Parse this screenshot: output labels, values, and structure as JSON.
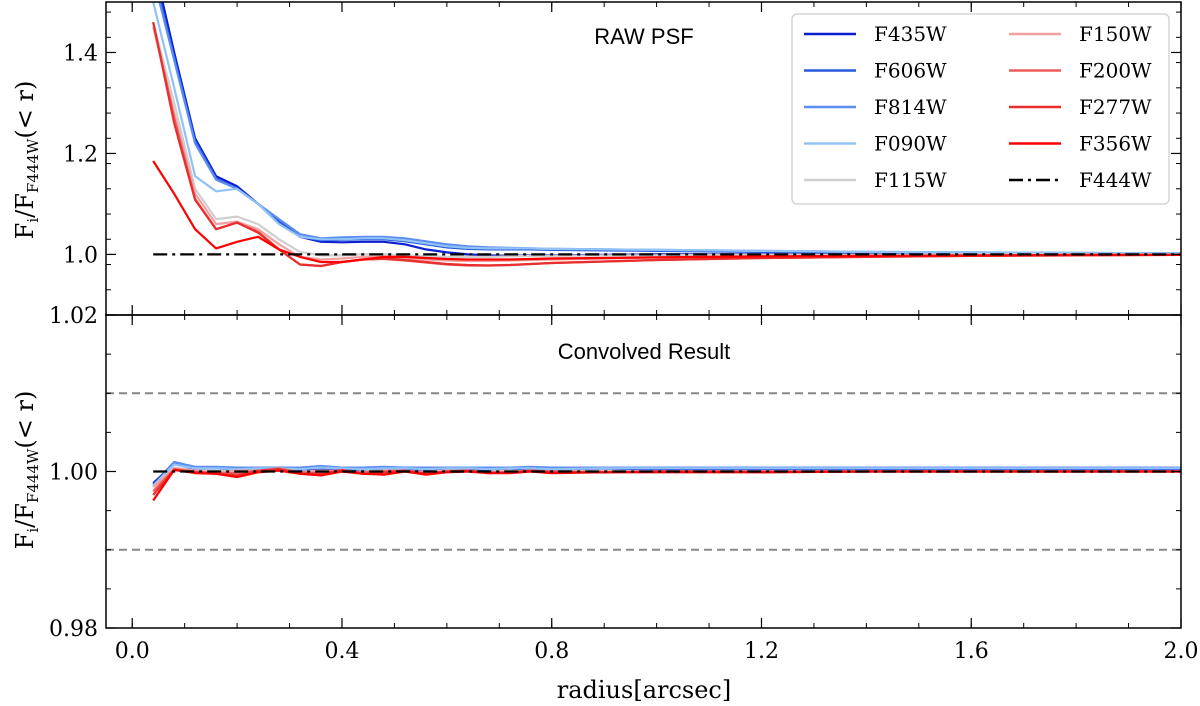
{
  "chart_data": [
    {
      "type": "line",
      "title": "RAW PSF",
      "ylabel": "F_i/F_F444W(< r)",
      "xlabel": "",
      "xlim": [
        -0.05,
        2.0
      ],
      "ylim": [
        0.88,
        1.5
      ],
      "yticks": [
        {
          "v": 1.0,
          "label": "1.0"
        },
        {
          "v": 1.2,
          "label": "1.2"
        },
        {
          "v": 1.4,
          "label": "1.4"
        }
      ],
      "grid": false,
      "legend_placement": "top-right",
      "x": [
        0.04,
        0.08,
        0.12,
        0.16,
        0.2,
        0.24,
        0.28,
        0.32,
        0.36,
        0.4,
        0.44,
        0.48,
        0.52,
        0.56,
        0.6,
        0.64,
        0.68,
        0.72,
        0.76,
        0.8,
        0.9,
        1.0,
        1.1,
        1.2,
        1.4,
        1.6,
        1.8,
        2.0
      ],
      "series": [
        {
          "name": "F435W",
          "color": "#0b1fd1",
          "values": [
            1.58,
            1.4,
            1.23,
            1.155,
            1.135,
            1.1,
            1.065,
            1.035,
            1.025,
            1.024,
            1.025,
            1.025,
            1.02,
            1.01,
            1.004,
            1.0,
            0.998,
            0.997,
            0.998,
            0.998,
            0.999,
            1.0,
            1.0,
            1.0,
            1.0,
            1.0,
            1.0,
            1.0
          ]
        },
        {
          "name": "F606W",
          "color": "#2659dd",
          "values": [
            1.56,
            1.39,
            1.225,
            1.15,
            1.13,
            1.1,
            1.065,
            1.035,
            1.028,
            1.029,
            1.03,
            1.03,
            1.026,
            1.02,
            1.014,
            1.011,
            1.01,
            1.01,
            1.01,
            1.009,
            1.008,
            1.007,
            1.006,
            1.005,
            1.004,
            1.003,
            1.002,
            1.002
          ]
        },
        {
          "name": "F814W",
          "color": "#5b8ef0",
          "values": [
            1.55,
            1.385,
            1.22,
            1.148,
            1.13,
            1.1,
            1.07,
            1.04,
            1.032,
            1.034,
            1.035,
            1.035,
            1.032,
            1.026,
            1.02,
            1.016,
            1.014,
            1.013,
            1.012,
            1.011,
            1.01,
            1.009,
            1.008,
            1.007,
            1.005,
            1.004,
            1.003,
            1.002
          ]
        },
        {
          "name": "F090W",
          "color": "#92c2f5",
          "values": [
            1.5,
            1.33,
            1.155,
            1.125,
            1.13,
            1.1,
            1.06,
            1.035,
            1.03,
            1.03,
            1.032,
            1.032,
            1.028,
            1.022,
            1.016,
            1.013,
            1.012,
            1.012,
            1.012,
            1.011,
            1.01,
            1.009,
            1.008,
            1.007,
            1.005,
            1.004,
            1.003,
            1.002
          ]
        },
        {
          "name": "F115W",
          "color": "#cfcfcf",
          "values": [
            1.46,
            1.3,
            1.13,
            1.07,
            1.075,
            1.06,
            1.03,
            1.005,
            0.998,
            0.998,
            1.0,
            1.0,
            0.998,
            0.996,
            0.995,
            0.995,
            0.995,
            0.996,
            0.997,
            0.997,
            0.998,
            0.998,
            0.999,
            0.999,
            0.999,
            1.0,
            1.0,
            1.0
          ]
        },
        {
          "name": "F150W",
          "color": "#f4a0a0",
          "values": [
            1.45,
            1.28,
            1.12,
            1.06,
            1.065,
            1.05,
            1.02,
            0.995,
            0.99,
            0.992,
            0.995,
            0.995,
            0.993,
            0.99,
            0.988,
            0.987,
            0.987,
            0.988,
            0.989,
            0.99,
            0.992,
            0.994,
            0.995,
            0.996,
            0.997,
            0.998,
            0.999,
            0.999
          ]
        },
        {
          "name": "F200W",
          "color": "#ee5c5c",
          "values": [
            1.46,
            1.27,
            1.11,
            1.05,
            1.063,
            1.045,
            1.01,
            0.98,
            0.977,
            0.985,
            0.99,
            0.991,
            0.988,
            0.984,
            0.98,
            0.978,
            0.978,
            0.979,
            0.981,
            0.983,
            0.986,
            0.989,
            0.991,
            0.993,
            0.995,
            0.997,
            0.998,
            0.999
          ]
        },
        {
          "name": "F277W",
          "color": "#e92e2e",
          "values": [
            1.46,
            1.26,
            1.108,
            1.05,
            1.063,
            1.043,
            1.01,
            0.98,
            0.977,
            0.985,
            0.99,
            0.992,
            0.989,
            0.985,
            0.981,
            0.979,
            0.978,
            0.979,
            0.981,
            0.983,
            0.986,
            0.989,
            0.991,
            0.993,
            0.995,
            0.997,
            0.998,
            0.999
          ]
        },
        {
          "name": "F356W",
          "color": "#ff0000",
          "values": [
            1.185,
            1.12,
            1.05,
            1.012,
            1.025,
            1.035,
            1.01,
            0.995,
            0.985,
            0.985,
            0.99,
            0.995,
            0.995,
            0.993,
            0.991,
            0.99,
            0.99,
            0.99,
            0.991,
            0.992,
            0.993,
            0.994,
            0.995,
            0.996,
            0.997,
            0.998,
            0.999,
            0.999
          ]
        },
        {
          "name": "F444W",
          "color": "#000000",
          "dash": "14 5 3 5",
          "values": [
            1.0,
            1.0,
            1.0,
            1.0,
            1.0,
            1.0,
            1.0,
            1.0,
            1.0,
            1.0,
            1.0,
            1.0,
            1.0,
            1.0,
            1.0,
            1.0,
            1.0,
            1.0,
            1.0,
            1.0,
            1.0,
            1.0,
            1.0,
            1.0,
            1.0,
            1.0,
            1.0,
            1.0
          ]
        }
      ]
    },
    {
      "type": "line",
      "title": "Convolved Result",
      "ylabel": "F_i/F_F444W(< r)",
      "xlabel": "radius[arcsec]",
      "xlim": [
        -0.05,
        2.0
      ],
      "ylim": [
        0.98,
        1.02
      ],
      "xticks": [
        {
          "v": 0.0,
          "label": "0.0"
        },
        {
          "v": 0.4,
          "label": "0.4"
        },
        {
          "v": 0.8,
          "label": "0.8"
        },
        {
          "v": 1.2,
          "label": "1.2"
        },
        {
          "v": 1.6,
          "label": "1.6"
        },
        {
          "v": 2.0,
          "label": "2.0"
        }
      ],
      "yticks": [
        {
          "v": 0.98,
          "label": "0.98"
        },
        {
          "v": 1.0,
          "label": "1.00"
        },
        {
          "v": 1.02,
          "label": "1.02"
        }
      ],
      "reference_lines": [
        0.99,
        1.01
      ],
      "grid": false,
      "x": [
        0.04,
        0.08,
        0.12,
        0.16,
        0.2,
        0.24,
        0.28,
        0.32,
        0.36,
        0.4,
        0.44,
        0.48,
        0.52,
        0.56,
        0.6,
        0.64,
        0.68,
        0.72,
        0.76,
        0.8,
        0.9,
        1.0,
        1.1,
        1.2,
        1.4,
        1.6,
        1.8,
        2.0
      ],
      "series": [
        {
          "name": "F435W",
          "color": "#0b1fd1",
          "values": [
            0.9985,
            1.001,
            1.0003,
            1.0004,
            1.0002,
            1.0003,
            1.0003,
            1.0002,
            1.0004,
            1.0003,
            1.0002,
            1.0003,
            1.0003,
            1.0002,
            1.0003,
            1.0003,
            1.0002,
            1.0003,
            1.0003,
            1.0002,
            1.0003,
            1.0003,
            1.0003,
            1.0003,
            1.0003,
            1.0003,
            1.0003,
            1.0003
          ]
        },
        {
          "name": "F606W",
          "color": "#2659dd",
          "values": [
            0.9983,
            1.0012,
            1.0005,
            1.0005,
            1.0004,
            1.0004,
            1.0004,
            1.0004,
            1.0006,
            1.0004,
            1.0004,
            1.0005,
            1.0004,
            1.0004,
            1.0004,
            1.0004,
            1.0004,
            1.0004,
            1.0005,
            1.0004,
            1.0004,
            1.0004,
            1.0004,
            1.0004,
            1.0004,
            1.0004,
            1.0004,
            1.0004
          ]
        },
        {
          "name": "F814W",
          "color": "#5b8ef0",
          "values": [
            0.998,
            1.0012,
            1.0006,
            1.0006,
            1.0005,
            1.0005,
            1.0005,
            1.0005,
            1.0007,
            1.0005,
            1.0005,
            1.0006,
            1.0005,
            1.0005,
            1.0005,
            1.0005,
            1.0005,
            1.0005,
            1.0006,
            1.0005,
            1.0005,
            1.0005,
            1.0005,
            1.0005,
            1.0005,
            1.0005,
            1.0005,
            1.0005
          ]
        },
        {
          "name": "F090W",
          "color": "#92c2f5",
          "values": [
            0.9982,
            1.0009,
            1.0004,
            1.0004,
            1.0003,
            1.0004,
            1.0004,
            1.0003,
            1.0005,
            1.0004,
            1.0003,
            1.0004,
            1.0004,
            1.0003,
            1.0004,
            1.0004,
            1.0003,
            1.0004,
            1.0004,
            1.0003,
            1.0004,
            1.0004,
            1.0004,
            1.0004,
            1.0004,
            1.0004,
            1.0004,
            1.0004
          ]
        },
        {
          "name": "F115W",
          "color": "#cfcfcf",
          "values": [
            0.998,
            1.0005,
            1.0001,
            1.0001,
            1.0,
            1.0001,
            1.0001,
            1.0,
            1.0001,
            1.0,
            1.0,
            1.0001,
            1.0,
            1.0,
            1.0001,
            1.0,
            1.0,
            1.0001,
            1.0,
            1.0,
            1.0001,
            1.0,
            1.0,
            1.0,
            1.0,
            1.0,
            1.0,
            1.0
          ]
        },
        {
          "name": "F150W",
          "color": "#f4a0a0",
          "values": [
            0.998,
            1.0004,
            1.0001,
            0.9999,
            1.0001,
            1.0001,
            1.0003,
            0.9999,
            1.0001,
            1.0001,
            0.9999,
            1.0001,
            1.0001,
            0.9999,
            1.0001,
            1.0001,
            0.9999,
            1.0,
            1.0001,
            1.0,
            1.0,
            1.0,
            1.0,
            1.0,
            1.0,
            1.0,
            1.0,
            1.0
          ]
        },
        {
          "name": "F200W",
          "color": "#ee5c5c",
          "values": [
            0.9975,
            1.0003,
            1.0,
            0.9998,
            0.9998,
            1.0001,
            1.0004,
            0.9999,
            0.9998,
            1.0001,
            0.9999,
            1.0,
            1.0001,
            0.9998,
            1.0,
            1.0001,
            0.9999,
            0.9999,
            1.0001,
            1.0,
            0.9999,
            1.0,
            1.0,
            1.0,
            1.0,
            1.0,
            1.0,
            1.0
          ]
        },
        {
          "name": "F277W",
          "color": "#e92e2e",
          "values": [
            0.997,
            1.0002,
            0.9999,
            0.9997,
            0.9995,
            1.0001,
            1.0003,
            0.9997,
            0.9997,
            1.0002,
            0.9997,
            0.9999,
            1.0001,
            0.9997,
            1.0,
            1.0001,
            0.9998,
            0.9999,
            1.0001,
            0.9999,
            0.9999,
            1.0,
            1.0,
            0.9999,
            1.0,
            1.0,
            1.0,
            1.0
          ]
        },
        {
          "name": "F356W",
          "color": "#ff0000",
          "values": [
            0.9963,
            1.0002,
            0.9998,
            0.9997,
            0.9993,
            0.9999,
            1.0001,
            0.9997,
            0.9995,
            1.0,
            0.9997,
            0.9996,
            1.0,
            0.9996,
            0.9999,
            1.0,
            0.9998,
            0.9998,
            1.0,
            0.9998,
            0.9999,
            0.9999,
            0.9999,
            0.9999,
            1.0,
            1.0,
            1.0,
            1.0
          ]
        },
        {
          "name": "F444W",
          "color": "#000000",
          "dash": "14 5 3 5",
          "values": [
            1.0,
            1.0,
            1.0,
            1.0,
            1.0,
            1.0,
            1.0,
            1.0,
            1.0,
            1.0,
            1.0,
            1.0,
            1.0,
            1.0,
            1.0,
            1.0,
            1.0,
            1.0,
            1.0,
            1.0,
            1.0,
            1.0,
            1.0,
            1.0,
            1.0,
            1.0,
            1.0,
            1.0
          ]
        }
      ]
    }
  ]
}
